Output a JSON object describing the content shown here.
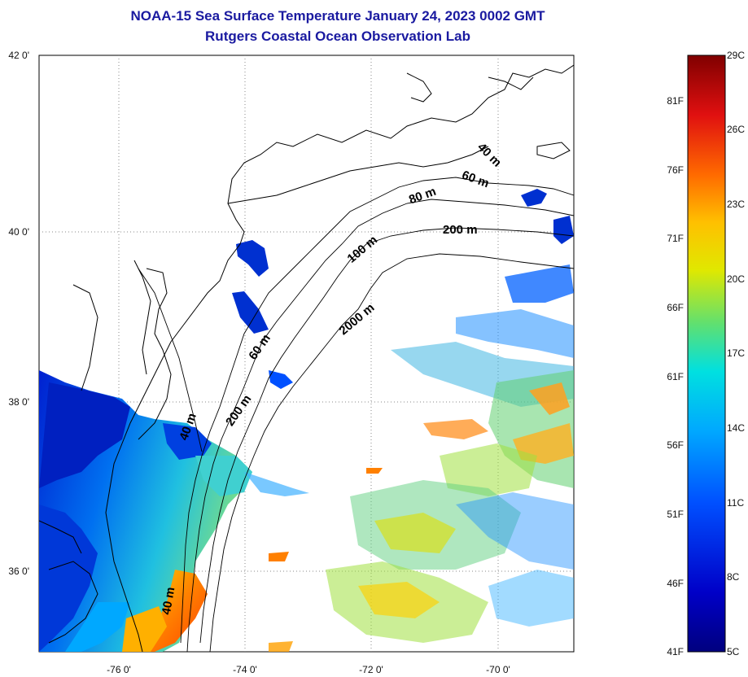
{
  "title": "NOAA-15 Sea Surface Temperature January 24, 2023 0002 GMT",
  "subtitle": "Rutgers Coastal Ocean Observation Lab",
  "latitude_labels": [
    "42 0'",
    "40 0'",
    "38 0'",
    "36 0'"
  ],
  "longitude_labels": [
    "-76 0'",
    "-74 0'",
    "-72 0'",
    "-70 0'"
  ],
  "isobath_labels": [
    "40 m",
    "60 m",
    "80 m",
    "200 m",
    "100 m",
    "2000 m",
    "60 m",
    "200 m",
    "40 m",
    "40 m"
  ],
  "colorbar": {
    "fahrenheit_labels": [
      "81F",
      "76F",
      "71F",
      "66F",
      "61F",
      "56F",
      "51F",
      "46F",
      "41F"
    ],
    "celsius_labels": [
      "29C",
      "26C",
      "23C",
      "20C",
      "17C",
      "14C",
      "11C",
      "8C",
      "5C"
    ],
    "colors": [
      "#800000",
      "#e01010",
      "#ff6a00",
      "#ffc000",
      "#e0e800",
      "#60e070",
      "#00e0e0",
      "#00a8ff",
      "#0050ff",
      "#0000c0",
      "#00007f"
    ]
  }
}
